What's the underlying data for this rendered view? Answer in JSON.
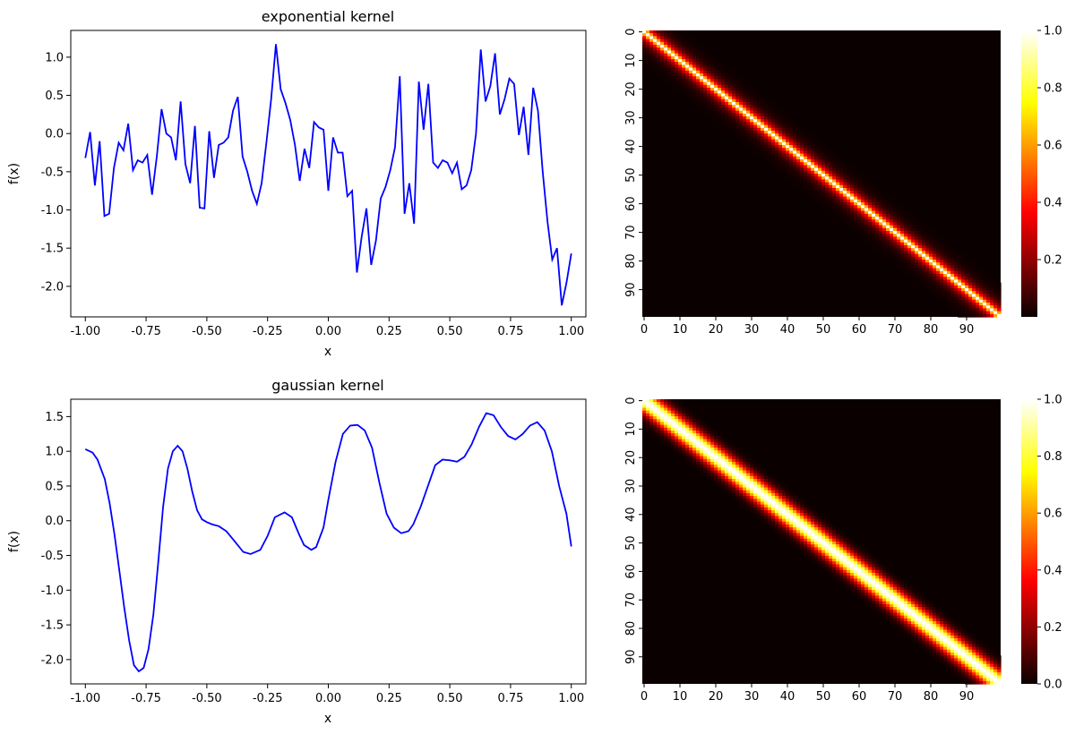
{
  "chart_data": [
    {
      "type": "line",
      "title": "exponential kernel",
      "xlabel": "x",
      "ylabel": "f(x)",
      "xlim": [
        -1.06,
        1.06
      ],
      "ylim": [
        -2.4,
        1.35
      ],
      "xticks": [
        -1.0,
        -0.75,
        -0.5,
        -0.25,
        0.0,
        0.25,
        0.5,
        0.75,
        1.0
      ],
      "xtick_labels": [
        "-1.00",
        "-0.75",
        "-0.50",
        "-0.25",
        "0.00",
        "0.25",
        "0.50",
        "0.75",
        "1.00"
      ],
      "yticks": [
        -2.0,
        -1.5,
        -1.0,
        -0.5,
        0.0,
        0.5,
        1.0
      ],
      "ytick_labels": [
        "-2.0",
        "-1.5",
        "-1.0",
        "-0.5",
        "0.0",
        "0.5",
        "1.0"
      ],
      "grid": false,
      "color": "#0000ff",
      "x_range": [
        -1.0,
        1.0
      ],
      "values": [
        -0.32,
        0.02,
        -0.68,
        -0.1,
        -1.08,
        -1.05,
        -0.45,
        -0.12,
        -0.22,
        0.13,
        -0.48,
        -0.35,
        -0.38,
        -0.28,
        -0.8,
        -0.3,
        0.32,
        0.0,
        -0.05,
        -0.35,
        0.42,
        -0.4,
        -0.65,
        0.1,
        -0.97,
        -0.98,
        0.03,
        -0.58,
        -0.15,
        -0.12,
        -0.05,
        0.3,
        0.48,
        -0.3,
        -0.5,
        -0.75,
        -0.92,
        -0.65,
        -0.12,
        0.45,
        1.17,
        0.58,
        0.4,
        0.18,
        -0.15,
        -0.62,
        -0.2,
        -0.45,
        0.15,
        0.08,
        0.05,
        -0.75,
        -0.05,
        -0.25,
        -0.25,
        -0.82,
        -0.75,
        -1.82,
        -1.35,
        -0.98,
        -1.72,
        -1.4,
        -0.85,
        -0.7,
        -0.48,
        -0.18,
        0.75,
        -1.05,
        -0.65,
        -1.18,
        0.68,
        0.05,
        0.65,
        -0.38,
        -0.45,
        -0.35,
        -0.38,
        -0.52,
        -0.38,
        -0.73,
        -0.68,
        -0.48,
        0.0,
        1.1,
        0.42,
        0.62,
        1.05,
        0.25,
        0.45,
        0.72,
        0.65,
        -0.02,
        0.35,
        -0.28,
        0.6,
        0.3,
        -0.5,
        -1.15,
        -1.65,
        -1.5,
        -2.25,
        -1.95,
        -1.57
      ]
    },
    {
      "type": "heatmap",
      "colormap": "hot",
      "kernel": "exponential",
      "size": 100,
      "length_scale": 2.0,
      "xticks": [
        0,
        10,
        20,
        30,
        40,
        50,
        60,
        70,
        80,
        90
      ],
      "yticks": [
        0,
        10,
        20,
        30,
        40,
        50,
        60,
        70,
        80,
        90
      ],
      "colorbar_ticks": [
        0.2,
        0.4,
        0.6,
        0.8,
        1.0
      ],
      "colorbar_labels": [
        "0.2",
        "0.4",
        "0.6",
        "0.8",
        "1.0"
      ],
      "vmin": 0.0,
      "vmax": 1.0
    },
    {
      "type": "line",
      "title": "gaussian kernel",
      "xlabel": "x",
      "ylabel": "f(x)",
      "xlim": [
        -1.06,
        1.06
      ],
      "ylim": [
        -2.35,
        1.75
      ],
      "xticks": [
        -1.0,
        -0.75,
        -0.5,
        -0.25,
        0.0,
        0.25,
        0.5,
        0.75,
        1.0
      ],
      "xtick_labels": [
        "-1.00",
        "-0.75",
        "-0.50",
        "-0.25",
        "0.00",
        "0.25",
        "0.50",
        "0.75",
        "1.00"
      ],
      "yticks": [
        -2.0,
        -1.5,
        -1.0,
        -0.5,
        0.0,
        0.5,
        1.0,
        1.5
      ],
      "ytick_labels": [
        "-2.0",
        "-1.5",
        "-1.0",
        "-0.5",
        "0.0",
        "0.5",
        "1.0",
        "1.5"
      ],
      "grid": false,
      "color": "#0000ff",
      "x": [
        -1.0,
        -0.97,
        -0.95,
        -0.92,
        -0.9,
        -0.88,
        -0.86,
        -0.84,
        -0.82,
        -0.8,
        -0.78,
        -0.76,
        -0.74,
        -0.72,
        -0.7,
        -0.68,
        -0.66,
        -0.64,
        -0.62,
        -0.6,
        -0.58,
        -0.56,
        -0.54,
        -0.52,
        -0.5,
        -0.48,
        -0.45,
        -0.42,
        -0.38,
        -0.35,
        -0.32,
        -0.28,
        -0.25,
        -0.22,
        -0.18,
        -0.15,
        -0.12,
        -0.1,
        -0.07,
        -0.05,
        -0.02,
        0.0,
        0.03,
        0.06,
        0.09,
        0.12,
        0.15,
        0.18,
        0.21,
        0.24,
        0.27,
        0.3,
        0.33,
        0.35,
        0.38,
        0.41,
        0.44,
        0.47,
        0.5,
        0.53,
        0.56,
        0.59,
        0.62,
        0.65,
        0.68,
        0.71,
        0.74,
        0.77,
        0.8,
        0.83,
        0.86,
        0.89,
        0.92,
        0.95,
        0.98,
        1.0
      ],
      "values": [
        1.03,
        0.98,
        0.88,
        0.6,
        0.25,
        -0.2,
        -0.72,
        -1.25,
        -1.72,
        -2.08,
        -2.17,
        -2.12,
        -1.85,
        -1.35,
        -0.6,
        0.2,
        0.75,
        1.0,
        1.08,
        1.0,
        0.75,
        0.42,
        0.15,
        0.02,
        -0.02,
        -0.05,
        -0.08,
        -0.15,
        -0.32,
        -0.45,
        -0.48,
        -0.42,
        -0.22,
        0.05,
        0.12,
        0.05,
        -0.2,
        -0.35,
        -0.42,
        -0.38,
        -0.1,
        0.3,
        0.85,
        1.25,
        1.37,
        1.38,
        1.3,
        1.05,
        0.55,
        0.1,
        -0.1,
        -0.18,
        -0.15,
        -0.05,
        0.2,
        0.5,
        0.8,
        0.88,
        0.87,
        0.85,
        0.92,
        1.1,
        1.35,
        1.55,
        1.52,
        1.35,
        1.22,
        1.17,
        1.25,
        1.37,
        1.42,
        1.3,
        1.0,
        0.5,
        0.1,
        -0.37
      ]
    },
    {
      "type": "heatmap",
      "colormap": "hot",
      "kernel": "gaussian",
      "size": 100,
      "length_scale": 3.0,
      "xticks": [
        0,
        10,
        20,
        30,
        40,
        50,
        60,
        70,
        80,
        90
      ],
      "yticks": [
        0,
        10,
        20,
        30,
        40,
        50,
        60,
        70,
        80,
        90
      ],
      "colorbar_ticks": [
        0.0,
        0.2,
        0.4,
        0.6,
        0.8,
        1.0
      ],
      "colorbar_labels": [
        "0.0",
        "0.2",
        "0.4",
        "0.6",
        "0.8",
        "1.0"
      ],
      "vmin": 0.0,
      "vmax": 1.0
    }
  ]
}
